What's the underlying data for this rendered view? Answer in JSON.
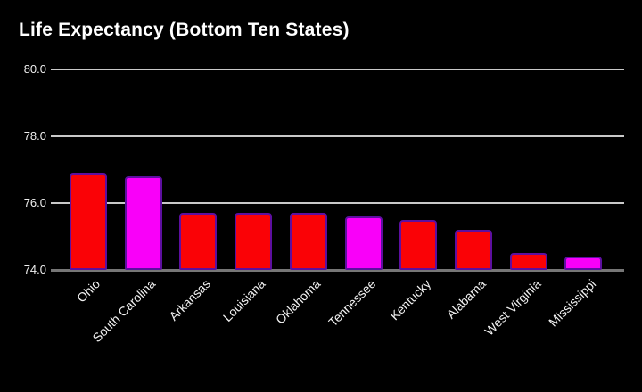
{
  "title": "Life Expectancy (Bottom Ten States)",
  "colors": {
    "background": "#000000",
    "bar_red": "#fa0206",
    "bar_magenta": "#f900f9",
    "bar_border": "#5d0fa0",
    "gridline": "#c9c9c9",
    "baseline": "#767676",
    "text": "#ffffff"
  },
  "chart_data": {
    "type": "bar",
    "title": "Life Expectancy (Bottom Ten States)",
    "categories": [
      "Ohio",
      "South Carolina",
      "Arkansas",
      "Louisiana",
      "Oklahoma",
      "Tennessee",
      "Kentucky",
      "Alabama",
      "West Virginia",
      "Mississippi"
    ],
    "values": [
      76.9,
      76.8,
      75.7,
      75.7,
      75.7,
      75.6,
      75.5,
      75.2,
      74.5,
      74.4
    ],
    "bar_colors": [
      "red",
      "magenta",
      "red",
      "red",
      "red",
      "magenta",
      "red",
      "red",
      "red",
      "magenta"
    ],
    "xlabel": "",
    "ylabel": "",
    "ylim": [
      74,
      80
    ],
    "yticks": [
      {
        "value": 80,
        "label": "80.0"
      },
      {
        "value": 78,
        "label": "78.0"
      },
      {
        "value": 76,
        "label": "76.0"
      },
      {
        "value": 74,
        "label": "74.0"
      }
    ],
    "grid": "horizontal",
    "legend": "none",
    "background": "black"
  }
}
